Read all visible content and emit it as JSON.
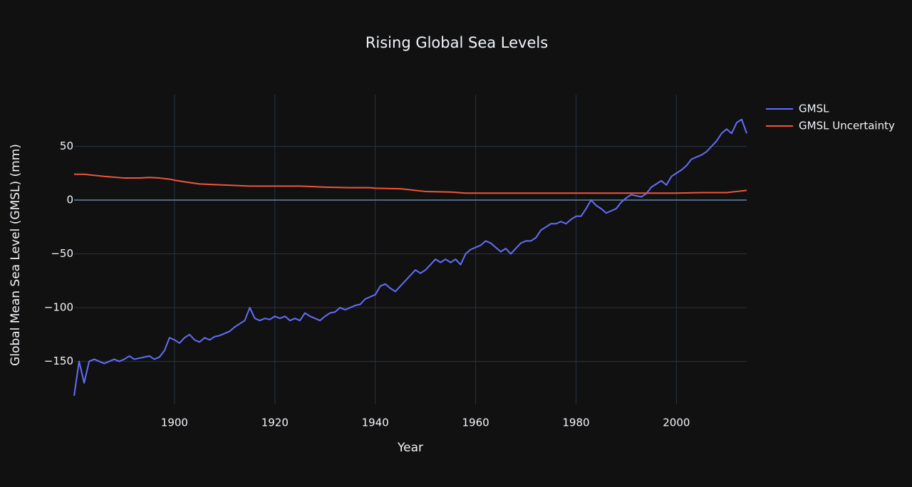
{
  "chart_data": {
    "type": "line",
    "title": "Rising Global Sea Levels",
    "x_label": "Year",
    "y_label": "Global Mean Sea Level (GMSL) (mm)",
    "xlim": [
      1880,
      2014
    ],
    "ylim": [
      -190,
      98
    ],
    "xticks": [
      1900,
      1920,
      1940,
      1960,
      1980,
      2000
    ],
    "yticks": [
      {
        "value": -150,
        "label": "−150"
      },
      {
        "value": -100,
        "label": "−100"
      },
      {
        "value": -50,
        "label": "−50"
      },
      0,
      50
    ],
    "grid": true,
    "legend": "right",
    "series": [
      {
        "name": "GMSL",
        "color": "#636efa",
        "x": [
          1880,
          1881,
          1882,
          1883,
          1884,
          1885,
          1886,
          1887,
          1888,
          1889,
          1890,
          1891,
          1892,
          1893,
          1894,
          1895,
          1896,
          1897,
          1898,
          1899,
          1900,
          1901,
          1902,
          1903,
          1904,
          1905,
          1906,
          1907,
          1908,
          1909,
          1910,
          1911,
          1912,
          1913,
          1914,
          1915,
          1916,
          1917,
          1918,
          1919,
          1920,
          1921,
          1922,
          1923,
          1924,
          1925,
          1926,
          1927,
          1928,
          1929,
          1930,
          1931,
          1932,
          1933,
          1934,
          1935,
          1936,
          1937,
          1938,
          1939,
          1940,
          1941,
          1942,
          1943,
          1944,
          1945,
          1946,
          1947,
          1948,
          1949,
          1950,
          1951,
          1952,
          1953,
          1954,
          1955,
          1956,
          1957,
          1958,
          1959,
          1960,
          1961,
          1962,
          1963,
          1964,
          1965,
          1966,
          1967,
          1968,
          1969,
          1970,
          1971,
          1972,
          1973,
          1974,
          1975,
          1976,
          1977,
          1978,
          1979,
          1980,
          1981,
          1982,
          1983,
          1984,
          1985,
          1986,
          1987,
          1988,
          1989,
          1990,
          1991,
          1992,
          1993,
          1994,
          1995,
          1996,
          1997,
          1998,
          1999,
          2000,
          2001,
          2002,
          2003,
          2004,
          2005,
          2006,
          2007,
          2008,
          2009,
          2010,
          2011,
          2012,
          2013,
          2014
        ],
        "values": [
          -182,
          -150,
          -170,
          -150,
          -148,
          -150,
          -152,
          -150,
          -148,
          -150,
          -148,
          -145,
          -148,
          -147,
          -146,
          -145,
          -148,
          -146,
          -140,
          -128,
          -130,
          -133,
          -128,
          -125,
          -130,
          -132,
          -128,
          -130,
          -127,
          -126,
          -124,
          -122,
          -118,
          -115,
          -112,
          -100,
          -110,
          -112,
          -110,
          -111,
          -108,
          -110,
          -108,
          -112,
          -110,
          -112,
          -105,
          -108,
          -110,
          -112,
          -108,
          -105,
          -104,
          -100,
          -102,
          -100,
          -98,
          -97,
          -92,
          -90,
          -88,
          -80,
          -78,
          -82,
          -85,
          -80,
          -75,
          -70,
          -65,
          -68,
          -65,
          -60,
          -55,
          -58,
          -55,
          -58,
          -55,
          -60,
          -50,
          -46,
          -44,
          -42,
          -38,
          -40,
          -44,
          -48,
          -45,
          -50,
          -45,
          -40,
          -38,
          -38,
          -35,
          -28,
          -25,
          -22,
          -22,
          -20,
          -22,
          -18,
          -15,
          -15,
          -8,
          0,
          -5,
          -8,
          -12,
          -10,
          -8,
          -2,
          2,
          5,
          4,
          3,
          6,
          12,
          15,
          18,
          14,
          22,
          25,
          28,
          32,
          38,
          40,
          42,
          45,
          50,
          55,
          62,
          66,
          62,
          72,
          75,
          62
        ]
      },
      {
        "name": "GMSL Uncertainty",
        "color": "#ef553b",
        "x": [
          1880,
          1882,
          1884,
          1886,
          1890,
          1893,
          1895,
          1897,
          1899,
          1900,
          1902,
          1905,
          1910,
          1915,
          1920,
          1925,
          1930,
          1935,
          1939,
          1940,
          1945,
          1947,
          1950,
          1955,
          1958,
          1960,
          1970,
          1980,
          1990,
          2000,
          2005,
          2010,
          2012,
          2014
        ],
        "values": [
          24,
          24,
          23,
          22,
          20.5,
          20.5,
          21,
          20.5,
          19.5,
          18.5,
          17,
          15,
          14,
          13,
          13,
          13,
          12,
          11.5,
          11.5,
          11,
          10.5,
          9.5,
          8,
          7.5,
          6.5,
          6.5,
          6.5,
          6.5,
          6.5,
          6.5,
          7,
          7,
          8,
          9
        ]
      }
    ]
  }
}
